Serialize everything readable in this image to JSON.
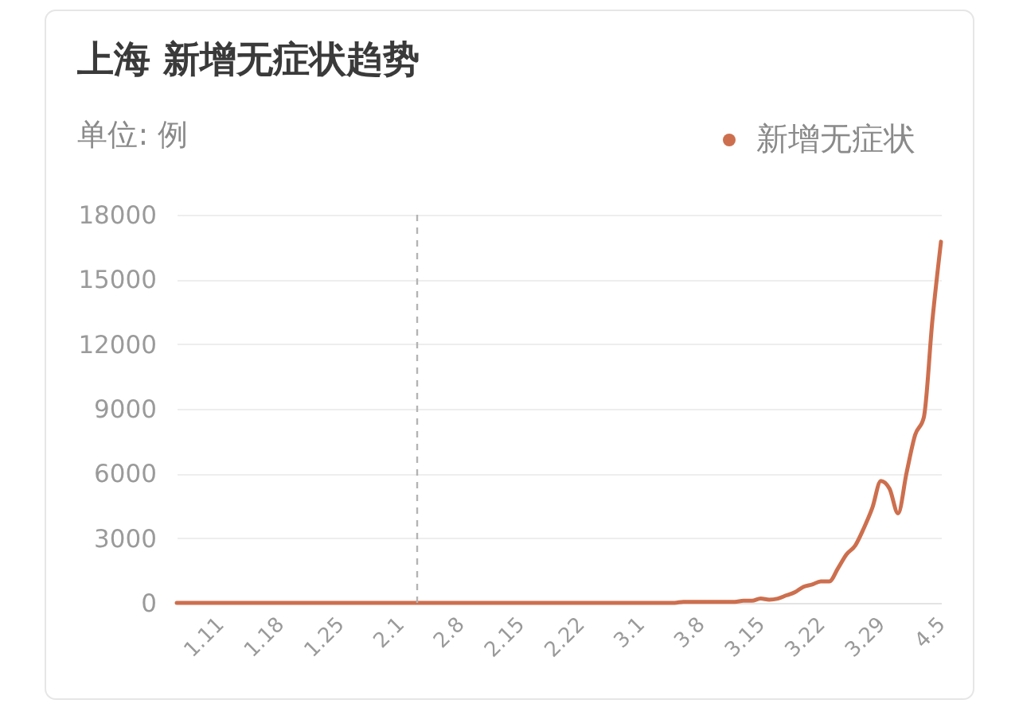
{
  "chart_data": {
    "type": "line",
    "title": "上海 新增无症状趋势",
    "subtitle": "单位: 例",
    "x": [
      "--01-06",
      "--01-07",
      "--01-08",
      "--01-09",
      "--01-10",
      "--01-11",
      "--01-12",
      "--01-13",
      "--01-14",
      "--01-15",
      "--01-16",
      "--01-17",
      "--01-18",
      "--01-19",
      "--01-20",
      "--01-21",
      "--01-22",
      "--01-23",
      "--01-24",
      "--01-25",
      "--01-26",
      "--01-27",
      "--01-28",
      "--01-29",
      "--01-30",
      "--01-31",
      "--02-01",
      "--02-02",
      "--02-03",
      "--02-04",
      "--02-05",
      "--02-06",
      "--02-07",
      "--02-08",
      "--02-09",
      "--02-10",
      "--02-11",
      "--02-12",
      "--02-13",
      "--02-14",
      "--02-15",
      "--02-16",
      "--02-17",
      "--02-18",
      "--02-19",
      "--02-20",
      "--02-21",
      "--02-22",
      "--02-23",
      "--02-24",
      "--02-25",
      "--02-26",
      "--02-27",
      "--02-28",
      "--03-01",
      "--03-02",
      "--03-03",
      "--03-04",
      "--03-05",
      "--03-06",
      "--03-07",
      "--03-08",
      "--03-09",
      "--03-10",
      "--03-11",
      "--03-12",
      "--03-13",
      "--03-14",
      "--03-15",
      "--03-16",
      "--03-17",
      "--03-18",
      "--03-19",
      "--03-20",
      "--03-21",
      "--03-22",
      "--03-23",
      "--03-24",
      "--03-25",
      "--03-26",
      "--03-27",
      "--03-28",
      "--03-29",
      "--03-30",
      "--03-31",
      "--04-01",
      "--04-02",
      "--04-03",
      "--04-04",
      "--04-05"
    ],
    "series": [
      {
        "name": "新增无症状",
        "color": "#cd6f4e",
        "values": [
          0,
          0,
          0,
          0,
          0,
          0,
          0,
          0,
          0,
          0,
          0,
          0,
          0,
          0,
          0,
          0,
          0,
          0,
          0,
          0,
          0,
          0,
          0,
          0,
          0,
          0,
          0,
          0,
          0,
          0,
          0,
          0,
          0,
          0,
          0,
          0,
          0,
          0,
          0,
          0,
          0,
          0,
          0,
          0,
          0,
          0,
          0,
          0,
          0,
          0,
          0,
          0,
          0,
          0,
          0,
          0,
          0,
          0,
          0,
          50,
          50,
          50,
          50,
          50,
          50,
          50,
          100,
          100,
          200,
          150,
          200,
          350,
          500,
          750,
          850,
          1000,
          1000,
          1600,
          2250,
          2650,
          3450,
          4400,
          5650,
          5300,
          4150,
          6050,
          7800,
          8600,
          13100,
          16750
        ]
      }
    ],
    "xlim": [
      "--01-06",
      "--04-05"
    ],
    "xticks": [
      {
        "value": "--01-11",
        "label": "1.11"
      },
      {
        "value": "--01-18",
        "label": "1.18"
      },
      {
        "value": "--01-25",
        "label": "1.25"
      },
      {
        "value": "--02-01",
        "label": "2.1"
      },
      {
        "value": "--02-08",
        "label": "2.8"
      },
      {
        "value": "--02-15",
        "label": "2.15"
      },
      {
        "value": "--02-22",
        "label": "2.22"
      },
      {
        "value": "--03-01",
        "label": "3.1"
      },
      {
        "value": "--03-08",
        "label": "3.8"
      },
      {
        "value": "--03-15",
        "label": "3.15"
      },
      {
        "value": "--03-22",
        "label": "3.22"
      },
      {
        "value": "--03-29",
        "label": "3.29"
      },
      {
        "value": "--04-05",
        "label": "4.5"
      }
    ],
    "ylim": [
      0,
      18000
    ],
    "yticks": [
      0,
      3000,
      6000,
      9000,
      12000,
      15000,
      18000
    ],
    "grid": "y",
    "legend": "top right",
    "ref_lines": [
      {
        "axis": "x",
        "value": "--02-03",
        "color": "#b4b4b4",
        "line_style": "dashed"
      }
    ]
  }
}
